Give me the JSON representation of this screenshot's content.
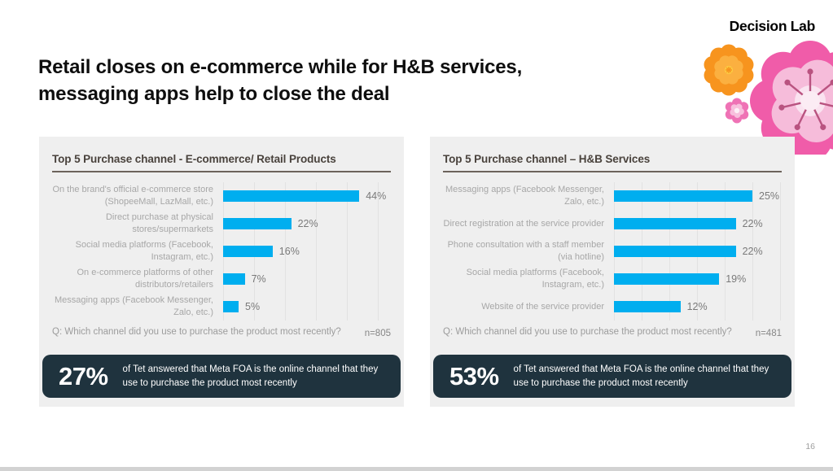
{
  "slide": {
    "title": "Retail closes on e-commerce while for H&B services, messaging apps help to close the deal",
    "logo": "Decision Lab",
    "page_number": "16"
  },
  "colors": {
    "bar": "#00AEEF",
    "panel_bg": "#EFEFEF",
    "callout_bg": "#1F333E",
    "flower_orange": "#F7941E",
    "flower_pink": "#F05CA9",
    "flower_light_pink": "#F6BCDA"
  },
  "chart_data": [
    {
      "type": "bar",
      "orientation": "horizontal",
      "title": "Top 5 Purchase channel - E-commerce/ Retail Products",
      "categories": [
        "On the brand's official e-commerce store (ShopeeMall, LazMall, etc.)",
        "Direct purchase at physical stores/supermarkets",
        "Social media platforms (Facebook, Instagram, etc.)",
        "On e-commerce platforms of other distributors/retailers",
        "Messaging apps (Facebook Messenger, Zalo, etc.)"
      ],
      "values": [
        44,
        22,
        16,
        7,
        5
      ],
      "value_labels": [
        "44%",
        "22%",
        "16%",
        "7%",
        "5%"
      ],
      "xlim": [
        0,
        50
      ],
      "grid_step": 10,
      "grid": true,
      "legend": "none",
      "question": "Q: Which channel did you use to purchase the product most recently?",
      "sample": "n=805",
      "highlight": {
        "stat": "27%",
        "text": "of Tet answered that Meta FOA is the online channel that they use to purchase the product most recently"
      }
    },
    {
      "type": "bar",
      "orientation": "horizontal",
      "title": "Top 5 Purchase channel – H&B Services",
      "categories": [
        "Messaging apps (Facebook Messenger, Zalo, etc.)",
        "Direct registration at the service provider",
        "Phone consultation with a staff member (via hotline)",
        "Social media platforms (Facebook, Instagram, etc.)",
        "Website of the service provider"
      ],
      "values": [
        25,
        22,
        22,
        19,
        12
      ],
      "value_labels": [
        "25%",
        "22%",
        "22%",
        "19%",
        "12%"
      ],
      "xlim": [
        0,
        30
      ],
      "grid_step": 5,
      "grid": true,
      "legend": "none",
      "question": "Q: Which channel did you use to purchase the product most recently?",
      "sample": "n=481",
      "highlight": {
        "stat": "53%",
        "text": "of Tet answered that Meta FOA is the online channel that they use to purchase the product most recently"
      }
    }
  ]
}
